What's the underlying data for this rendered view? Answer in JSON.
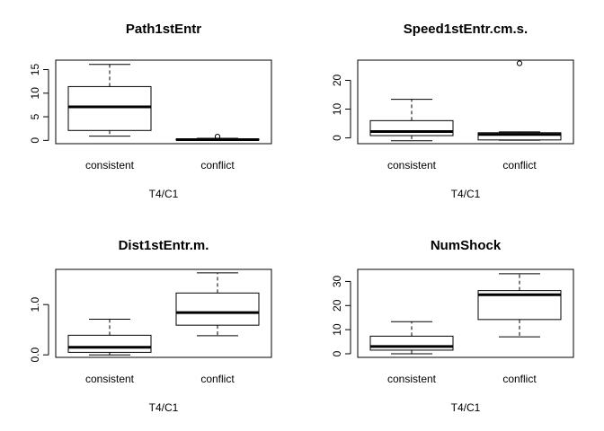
{
  "chart_data": [
    {
      "type": "box",
      "title": "Path1stEntr",
      "xlabel": "T4/C1",
      "ylabel": "",
      "ylim": [
        -0.7,
        17
      ],
      "yticks": [
        "0",
        "5",
        "10",
        "15"
      ],
      "categories": [
        "consistent",
        "conflict"
      ],
      "boxes": [
        {
          "label": "consistent",
          "whisker_low": 0.9,
          "q1": 2.1,
          "median": 7.1,
          "q3": 11.4,
          "whisker_high": 16.1,
          "outliers": []
        },
        {
          "label": "conflict",
          "whisker_low": 0.0,
          "q1": 0.05,
          "median": 0.15,
          "q3": 0.3,
          "whisker_high": 0.45,
          "outliers": [
            0.8
          ]
        }
      ]
    },
    {
      "type": "box",
      "title": "Speed1stEntr.cm.s.",
      "xlabel": "T4/C1",
      "ylabel": "",
      "ylim": [
        -2,
        27
      ],
      "yticks": [
        "0",
        "10",
        "20"
      ],
      "categories": [
        "consistent",
        "conflict"
      ],
      "boxes": [
        {
          "label": "consistent",
          "whisker_low": -1.0,
          "q1": 0.8,
          "median": 2.2,
          "q3": 6.0,
          "whisker_high": 13.4,
          "outliers": []
        },
        {
          "label": "conflict",
          "whisker_low": -0.8,
          "q1": -0.7,
          "median": 1.2,
          "q3": 1.8,
          "whisker_high": 2.1,
          "outliers": [
            25.9
          ]
        }
      ]
    },
    {
      "type": "box",
      "title": "Dist1stEntr.m.",
      "xlabel": "T4/C1",
      "ylabel": "",
      "ylim": [
        -0.05,
        1.7
      ],
      "yticks": [
        "0.0",
        "1.0"
      ],
      "categories": [
        "consistent",
        "conflict"
      ],
      "boxes": [
        {
          "label": "consistent",
          "whisker_low": 0.0,
          "q1": 0.05,
          "median": 0.15,
          "q3": 0.39,
          "whisker_high": 0.71,
          "outliers": []
        },
        {
          "label": "conflict",
          "whisker_low": 0.38,
          "q1": 0.59,
          "median": 0.84,
          "q3": 1.23,
          "whisker_high": 1.63,
          "outliers": []
        }
      ]
    },
    {
      "type": "box",
      "title": "NumShock",
      "xlabel": "T4/C1",
      "ylabel": "",
      "ylim": [
        -1.5,
        35
      ],
      "yticks": [
        "0",
        "10",
        "20",
        "30"
      ],
      "categories": [
        "consistent",
        "conflict"
      ],
      "boxes": [
        {
          "label": "consistent",
          "whisker_low": 0.0,
          "q1": 1.5,
          "median": 3.0,
          "q3": 7.3,
          "whisker_high": 13.3,
          "outliers": []
        },
        {
          "label": "conflict",
          "whisker_low": 7.0,
          "q1": 14.2,
          "median": 24.5,
          "q3": 26.2,
          "whisker_high": 33.2,
          "outliers": []
        }
      ]
    }
  ]
}
